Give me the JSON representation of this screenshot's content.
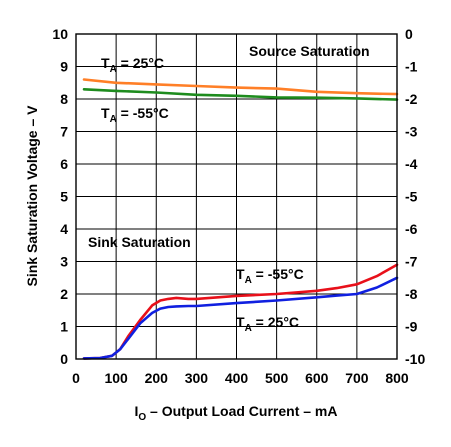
{
  "chart_data": {
    "type": "line",
    "xlabel": "I",
    "xlabel_sub": "O",
    "xlabel_rest": " – Output Load Current – mA",
    "ylabel": "Sink Saturation Voltage – V",
    "xlim": [
      0,
      800
    ],
    "ylim": [
      0,
      10
    ],
    "y2lim": [
      -10,
      0
    ],
    "grid": true,
    "x_ticks": [
      "0",
      "100",
      "200",
      "300",
      "400",
      "500",
      "600",
      "700",
      "800"
    ],
    "y_ticks": [
      "0",
      "1",
      "2",
      "3",
      "4",
      "5",
      "6",
      "7",
      "8",
      "9",
      "10"
    ],
    "y2_ticks": [
      "-10",
      "-9",
      "-8",
      "-7",
      "-6",
      "-5",
      "-4",
      "-3",
      "-2",
      "-1",
      "0"
    ],
    "annotations": {
      "source_saturation": "Source Saturation",
      "sink_saturation": "Sink Saturation",
      "src_t25_prefix": "T",
      "src_t25_sub": "A",
      "src_t25_rest": " = 25°C",
      "src_tm55_prefix": "T",
      "src_tm55_sub": "A",
      "src_tm55_rest": " = -55°C",
      "snk_tm55_prefix": "T",
      "snk_tm55_sub": "A",
      "snk_tm55_rest": " = -55°C",
      "snk_t25_prefix": "T",
      "snk_t25_sub": "A",
      "snk_t25_rest": " = 25°C"
    },
    "series": [
      {
        "group": "source",
        "axis": "right",
        "color": "#ff7f27",
        "x": [
          20,
          100,
          200,
          300,
          400,
          500,
          600,
          700,
          800
        ],
        "y": [
          -1.4,
          -1.5,
          -1.55,
          -1.6,
          -1.65,
          -1.68,
          -1.78,
          -1.82,
          -1.85
        ]
      },
      {
        "group": "source",
        "axis": "right",
        "color": "#1e8c1e",
        "x": [
          20,
          100,
          200,
          300,
          400,
          500,
          600,
          700,
          800
        ],
        "y": [
          -1.7,
          -1.75,
          -1.8,
          -1.87,
          -1.9,
          -1.95,
          -1.96,
          -1.98,
          -2.02
        ]
      },
      {
        "group": "sink",
        "axis": "left",
        "color": "#e8101a",
        "x": [
          20,
          60,
          90,
          110,
          130,
          160,
          190,
          210,
          230,
          250,
          280,
          300,
          400,
          500,
          550,
          600,
          650,
          700,
          750,
          800
        ],
        "y": [
          0.02,
          0.03,
          0.1,
          0.3,
          0.7,
          1.2,
          1.65,
          1.8,
          1.85,
          1.88,
          1.85,
          1.85,
          1.94,
          2.0,
          2.05,
          2.1,
          2.18,
          2.3,
          2.55,
          2.9
        ]
      },
      {
        "group": "sink",
        "axis": "left",
        "color": "#1020e0",
        "x": [
          20,
          60,
          90,
          110,
          130,
          160,
          190,
          210,
          230,
          250,
          280,
          300,
          400,
          500,
          600,
          650,
          700,
          750,
          800
        ],
        "y": [
          0.02,
          0.03,
          0.1,
          0.3,
          0.62,
          1.1,
          1.42,
          1.55,
          1.6,
          1.62,
          1.63,
          1.63,
          1.72,
          1.8,
          1.9,
          1.95,
          2.0,
          2.2,
          2.5
        ]
      }
    ]
  }
}
